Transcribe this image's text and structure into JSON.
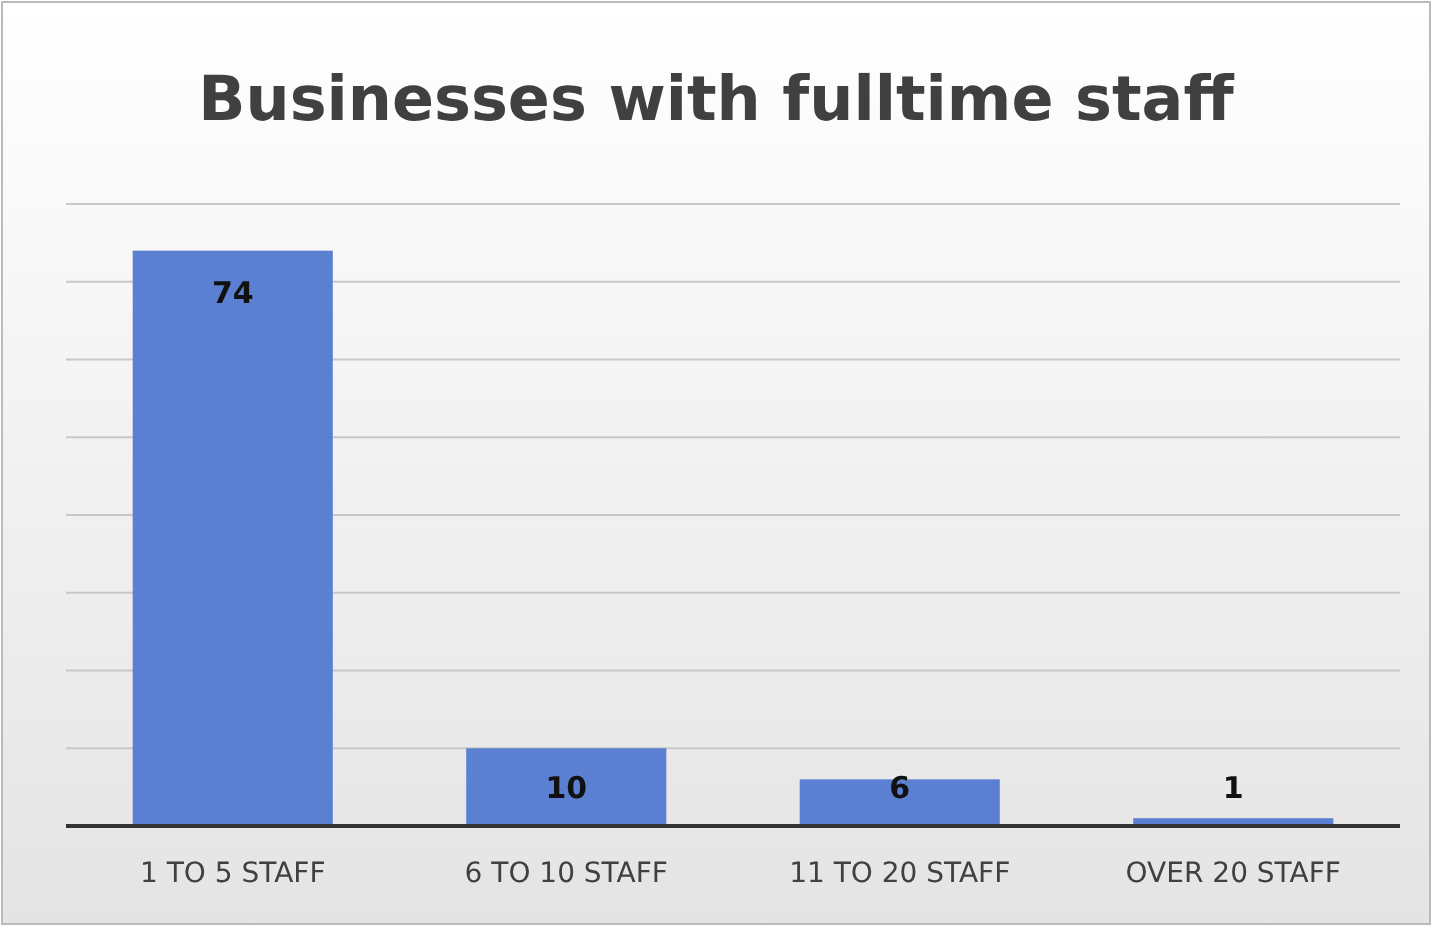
{
  "chart_data": {
    "type": "bar",
    "title": "Businesses with fulltime staff",
    "categories": [
      "1 TO 5 STAFF",
      "6 TO 10 STAFF",
      "11 TO 20 STAFF",
      "OVER 20 STAFF"
    ],
    "values": [
      74,
      10,
      6,
      1
    ],
    "color": "#5b7fd1",
    "ylim": [
      0,
      80
    ],
    "yticks": [
      {
        "value": 0,
        "label": null
      },
      {
        "value": 10,
        "label": null
      },
      {
        "value": 20,
        "label": null
      },
      {
        "value": 30,
        "label": null
      },
      {
        "value": 40,
        "label": null
      },
      {
        "value": 50,
        "label": null
      },
      {
        "value": 60,
        "label": null
      },
      {
        "value": 70,
        "label": null
      },
      {
        "value": 80,
        "label": null
      }
    ],
    "tick_labels": "x",
    "grid": "y",
    "data_labels": true
  }
}
